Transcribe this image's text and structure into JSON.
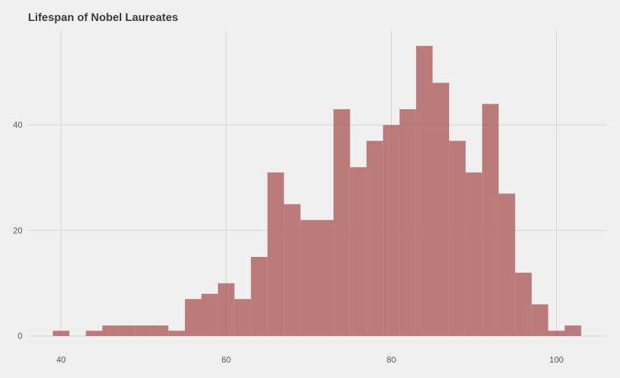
{
  "chart_data": {
    "type": "bar",
    "title": "Lifespan of Nobel Laureates",
    "xlabel": "",
    "ylabel": "",
    "bin_width": 2,
    "bins": [
      {
        "x0": 39,
        "x1": 41,
        "count": 1
      },
      {
        "x0": 41,
        "x1": 43,
        "count": 0
      },
      {
        "x0": 43,
        "x1": 45,
        "count": 1
      },
      {
        "x0": 45,
        "x1": 47,
        "count": 2
      },
      {
        "x0": 47,
        "x1": 49,
        "count": 2
      },
      {
        "x0": 49,
        "x1": 51,
        "count": 2
      },
      {
        "x0": 51,
        "x1": 53,
        "count": 2
      },
      {
        "x0": 53,
        "x1": 55,
        "count": 1
      },
      {
        "x0": 55,
        "x1": 57,
        "count": 7
      },
      {
        "x0": 57,
        "x1": 59,
        "count": 8
      },
      {
        "x0": 59,
        "x1": 61,
        "count": 10
      },
      {
        "x0": 61,
        "x1": 63,
        "count": 7
      },
      {
        "x0": 63,
        "x1": 65,
        "count": 15
      },
      {
        "x0": 65,
        "x1": 67,
        "count": 31
      },
      {
        "x0": 67,
        "x1": 69,
        "count": 25
      },
      {
        "x0": 69,
        "x1": 71,
        "count": 22
      },
      {
        "x0": 71,
        "x1": 73,
        "count": 22
      },
      {
        "x0": 73,
        "x1": 75,
        "count": 43
      },
      {
        "x0": 75,
        "x1": 77,
        "count": 32
      },
      {
        "x0": 77,
        "x1": 79,
        "count": 37
      },
      {
        "x0": 79,
        "x1": 81,
        "count": 40
      },
      {
        "x0": 81,
        "x1": 83,
        "count": 43
      },
      {
        "x0": 83,
        "x1": 85,
        "count": 55
      },
      {
        "x0": 85,
        "x1": 87,
        "count": 48
      },
      {
        "x0": 87,
        "x1": 89,
        "count": 37
      },
      {
        "x0": 89,
        "x1": 91,
        "count": 31
      },
      {
        "x0": 91,
        "x1": 93,
        "count": 44
      },
      {
        "x0": 93,
        "x1": 95,
        "count": 27
      },
      {
        "x0": 95,
        "x1": 97,
        "count": 12
      },
      {
        "x0": 97,
        "x1": 99,
        "count": 6
      },
      {
        "x0": 99,
        "x1": 101,
        "count": 1
      },
      {
        "x0": 101,
        "x1": 103,
        "count": 2
      }
    ],
    "x_ticks": [
      40,
      60,
      80,
      100
    ],
    "y_ticks": [
      0,
      20,
      40
    ],
    "xlim": [
      36,
      106
    ],
    "ylim": [
      0,
      58
    ],
    "grid": true,
    "bar_color": "#b06060"
  }
}
